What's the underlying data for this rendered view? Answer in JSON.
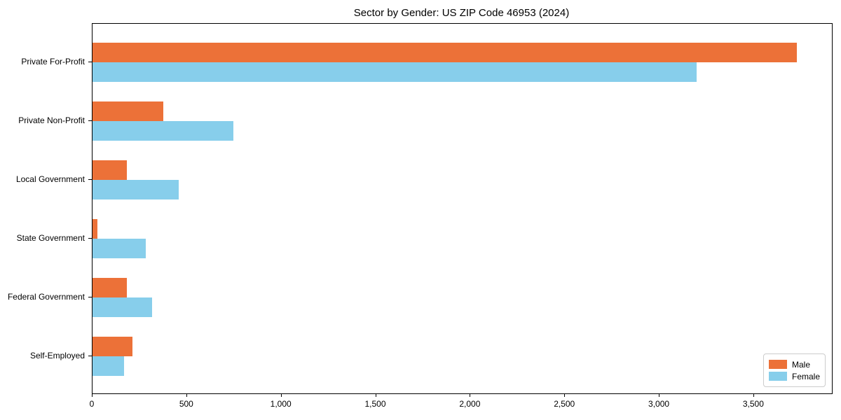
{
  "chart_data": {
    "type": "bar",
    "orientation": "horizontal",
    "title": "Sector by Gender: US ZIP Code 46953 (2024)",
    "categories": [
      "Private For-Profit",
      "Private Non-Profit",
      "Local Government",
      "State Government",
      "Federal Government",
      "Self-Employed"
    ],
    "series": [
      {
        "name": "Male",
        "color": "#EC7138",
        "values": [
          3725,
          375,
          180,
          25,
          180,
          210
        ]
      },
      {
        "name": "Female",
        "color": "#87CEEB",
        "values": [
          3195,
          745,
          455,
          280,
          315,
          165
        ]
      }
    ],
    "xlim": [
      0,
      3912
    ],
    "xticks": [
      0,
      500,
      1000,
      1500,
      2000,
      2500,
      3000,
      3500
    ],
    "xtick_labels": [
      "0",
      "500",
      "1,000",
      "1,500",
      "2,000",
      "2,500",
      "3,000",
      "3,500"
    ],
    "ylabel": "",
    "xlabel": "",
    "grid": false,
    "legend_position": "lower right"
  }
}
